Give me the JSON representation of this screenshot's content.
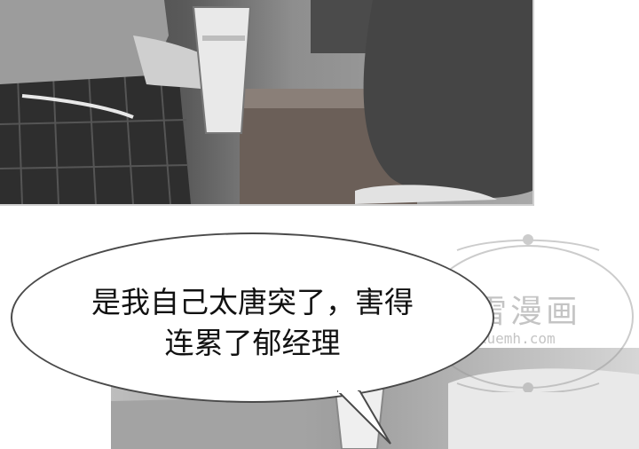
{
  "bubble": {
    "line1": "是我自己太唐突了，害得",
    "line2": "连累了郁经理"
  },
  "watermark": {
    "title": "飞雪漫画",
    "url": "feixuemh.com"
  },
  "colors": {
    "ink": "#111111",
    "bubble_border": "#4a4a4a",
    "watermark": "#8a8a8a"
  }
}
